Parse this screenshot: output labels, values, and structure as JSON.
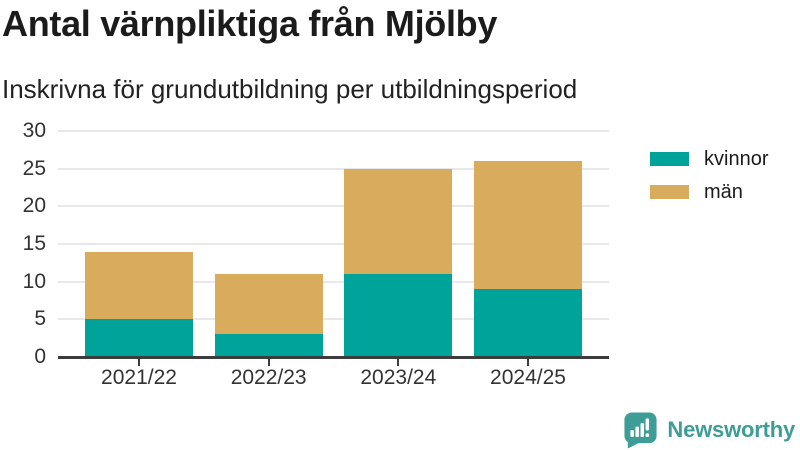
{
  "header": {
    "title": "Antal värnpliktiga från Mjölby",
    "subtitle": "Inskrivna för grundutbildning per utbildningsperiod"
  },
  "chart_data": {
    "type": "bar",
    "stacked": true,
    "title": "Antal värnpliktiga från Mjölby",
    "subtitle": "Inskrivna för grundutbildning per utbildningsperiod",
    "categories": [
      "2021/22",
      "2022/23",
      "2023/24",
      "2024/25"
    ],
    "series": [
      {
        "name": "kvinnor",
        "color": "#00a39a",
        "values": [
          5,
          3,
          11,
          9
        ]
      },
      {
        "name": "män",
        "color": "#d9ab5c",
        "values": [
          9,
          8,
          14,
          17
        ]
      }
    ],
    "totals": [
      14,
      11,
      25,
      26
    ],
    "xlabel": "",
    "ylabel": "",
    "ylim": [
      0,
      30
    ],
    "yticks": [
      0,
      5,
      10,
      15,
      20,
      25,
      30
    ],
    "grid": "horizontal-only",
    "legend_position": "top-right"
  },
  "axis": {
    "gridline_color": "#e8e8e8",
    "baseline_color": "#3c3c3c",
    "label_color": "#333333"
  },
  "branding": {
    "name": "Newsworthy",
    "color": "#3f9d97",
    "icon": "newsworthy-speech-bubble-bar-chart-icon"
  }
}
